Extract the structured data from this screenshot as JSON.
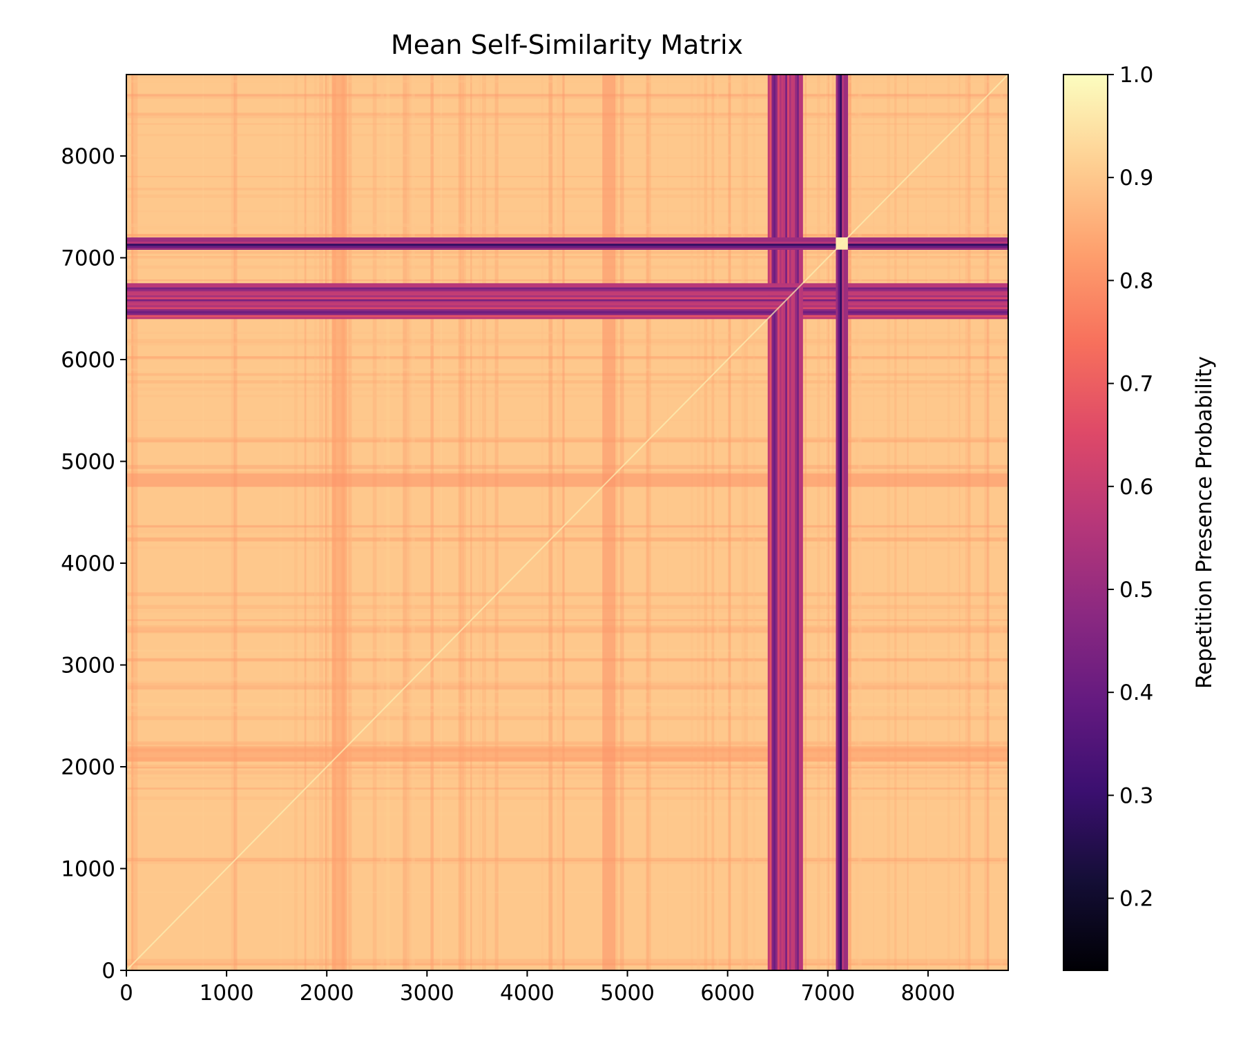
{
  "chart_data": {
    "type": "heatmap",
    "title": "Mean Self-Similarity Matrix",
    "xlabel": "",
    "ylabel": "",
    "xlim": [
      0,
      8800
    ],
    "ylim": [
      0,
      8800
    ],
    "x_ticks": [
      0,
      1000,
      2000,
      3000,
      4000,
      5000,
      6000,
      7000,
      8000
    ],
    "y_ticks": [
      0,
      1000,
      2000,
      3000,
      4000,
      5000,
      6000,
      7000,
      8000
    ],
    "colormap": "magma",
    "colorbar": {
      "label": "Repetition Presence Probability",
      "range": [
        0.13,
        1.0
      ],
      "ticks": [
        "0.2",
        "0.3",
        "0.4",
        "0.5",
        "0.6",
        "0.7",
        "0.8",
        "0.9",
        "1.0"
      ]
    },
    "background_value": 0.9,
    "low_similarity_bands": [
      {
        "range": [
          6400,
          6750
        ],
        "mean_value": 0.55
      },
      {
        "range": [
          7080,
          7200
        ],
        "mean_value": 0.42
      }
    ],
    "moderate_bands": [
      {
        "range": [
          2050,
          2200
        ],
        "mean_value": 0.82
      },
      {
        "range": [
          4750,
          4880
        ],
        "mean_value": 0.8
      }
    ],
    "grid": false
  }
}
